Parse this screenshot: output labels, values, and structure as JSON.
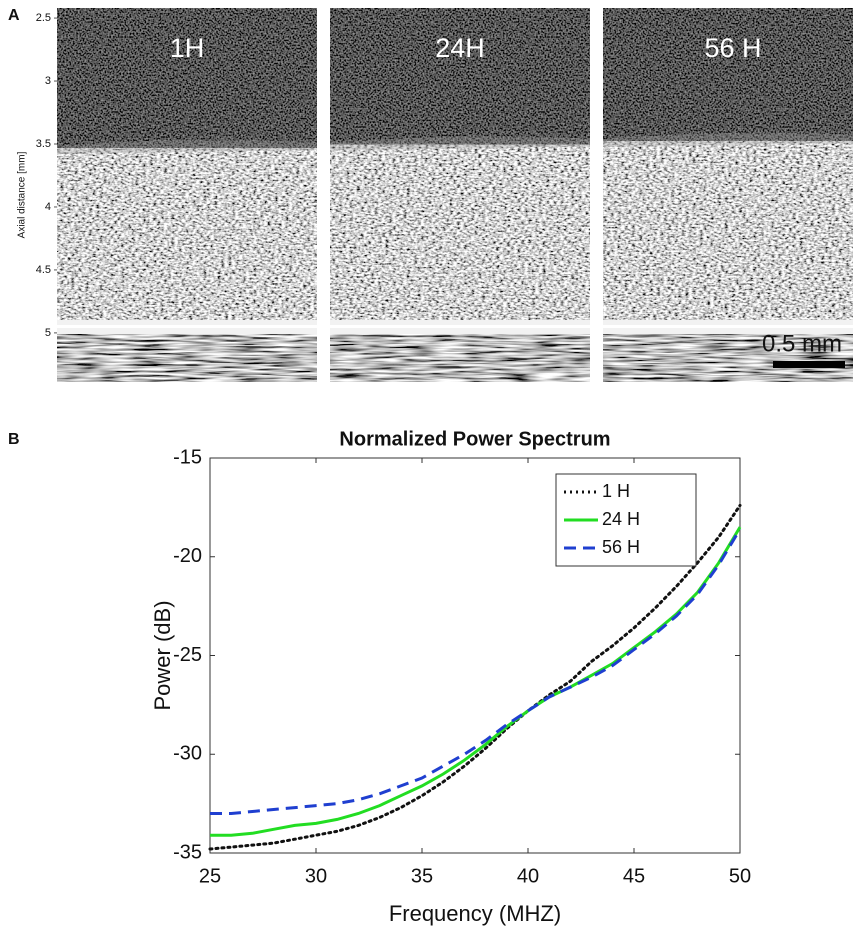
{
  "chart_data": [
    {
      "type": "image",
      "label": "A",
      "ylabel": "Axial distance [mm]",
      "ylim": [
        2.42,
        5.39
      ],
      "yticks": [
        2.5,
        3,
        3.5,
        4,
        4.5,
        5
      ],
      "panels": [
        "1H",
        "24H",
        "56 H"
      ],
      "scale_bar": "0.5 mm"
    },
    {
      "type": "line",
      "label": "B",
      "title": "Normalized Power Spectrum",
      "xlabel": "Frequency (MHZ)",
      "ylabel": "Power (dB)",
      "xlim": [
        25,
        50
      ],
      "ylim": [
        -35,
        -15
      ],
      "xticks": [
        25,
        30,
        35,
        40,
        45,
        50
      ],
      "yticks": [
        -35,
        -30,
        -25,
        -20,
        -15
      ],
      "legend": "upper right",
      "x": [
        25,
        26,
        27,
        28,
        29,
        30,
        31,
        32,
        33,
        34,
        35,
        36,
        37,
        38,
        39,
        40,
        41,
        42,
        43,
        44,
        45,
        46,
        47,
        48,
        49,
        50
      ],
      "series": [
        {
          "name": "1 H",
          "color": "#111111",
          "dash": "dotted",
          "values": [
            -34.8,
            -34.7,
            -34.6,
            -34.5,
            -34.3,
            -34.1,
            -33.9,
            -33.6,
            -33.2,
            -32.7,
            -32.1,
            -31.4,
            -30.6,
            -29.7,
            -28.7,
            -27.8,
            -27.0,
            -26.3,
            -25.3,
            -24.5,
            -23.6,
            -22.6,
            -21.5,
            -20.3,
            -19.0,
            -17.4
          ]
        },
        {
          "name": "24 H",
          "color": "#22dd22",
          "dash": "solid",
          "values": [
            -34.1,
            -34.1,
            -34.0,
            -33.8,
            -33.6,
            -33.5,
            -33.3,
            -33.0,
            -32.6,
            -32.1,
            -31.6,
            -31.0,
            -30.3,
            -29.5,
            -28.6,
            -27.8,
            -27.1,
            -26.6,
            -26.0,
            -25.4,
            -24.6,
            -23.8,
            -22.9,
            -21.8,
            -20.3,
            -18.5
          ]
        },
        {
          "name": "56 H",
          "color": "#1f3fd0",
          "dash": "dashed",
          "values": [
            -33.0,
            -33.0,
            -32.9,
            -32.8,
            -32.7,
            -32.6,
            -32.5,
            -32.3,
            -32.0,
            -31.6,
            -31.2,
            -30.6,
            -30.0,
            -29.3,
            -28.5,
            -27.8,
            -27.1,
            -26.6,
            -26.1,
            -25.5,
            -24.7,
            -23.9,
            -23.0,
            -21.9,
            -20.4,
            -18.6
          ]
        }
      ]
    }
  ]
}
